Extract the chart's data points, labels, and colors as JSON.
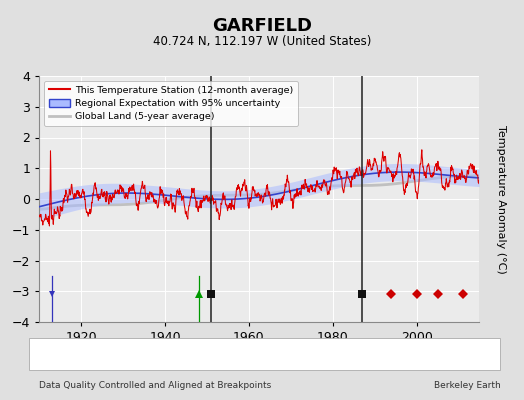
{
  "title": "GARFIELD",
  "subtitle": "40.724 N, 112.197 W (United States)",
  "ylabel": "Temperature Anomaly (°C)",
  "footer_left": "Data Quality Controlled and Aligned at Breakpoints",
  "footer_right": "Berkeley Earth",
  "xlim": [
    1910,
    2015
  ],
  "ylim": [
    -4,
    4
  ],
  "yticks": [
    -4,
    -3,
    -2,
    -1,
    0,
    1,
    2,
    3,
    4
  ],
  "xticks": [
    1920,
    1940,
    1960,
    1980,
    2000
  ],
  "bg_color": "#e0e0e0",
  "plot_bg_color": "#ebebeb",
  "grid_color": "#ffffff",
  "station_moves": [
    1994,
    2000,
    2005,
    2011
  ],
  "record_gaps": [
    1948
  ],
  "obs_changes": [
    1913
  ],
  "empirical_breaks": [
    1951,
    1987
  ],
  "marker_y": -3.1,
  "legend_items": [
    {
      "label": "This Temperature Station (12-month average)",
      "color": "#ff0000",
      "lw": 1.0
    },
    {
      "label": "Regional Expectation with 95% uncertainty",
      "color": "#4444cc",
      "lw": 1.2
    },
    {
      "label": "Global Land (5-year average)",
      "color": "#bbbbbb",
      "lw": 2.0
    }
  ]
}
